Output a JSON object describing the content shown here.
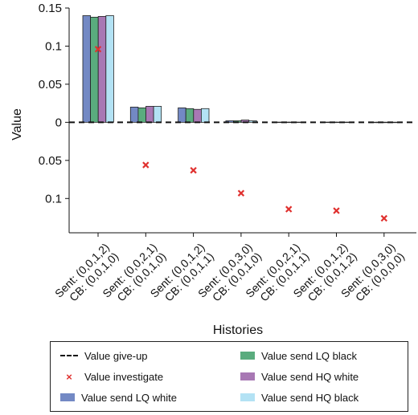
{
  "chart_data": {
    "type": "bar",
    "ylabel": "Value",
    "xlabel": "Histories",
    "ylim": [
      -0.145,
      0.15
    ],
    "y_ticks": [
      {
        "value": 0.15,
        "label": "0.15"
      },
      {
        "value": 0.1,
        "label": "0.1"
      },
      {
        "value": 0.05,
        "label": "0.05"
      },
      {
        "value": 0,
        "label": "0"
      },
      {
        "value": -0.05,
        "label": "0.05"
      },
      {
        "value": -0.1,
        "label": "0.1"
      }
    ],
    "categories": [
      "Sent: (0,0,1,2)\nCB: (0,0,1,0)",
      "Sent: (0,0,2,1)\nCB: (0,0,1,0)",
      "Sent: (0,0,1,2)\nCB: (0,0,1,1)",
      "Sent: (0,0,3,0)\nCB: (0,0,1,0)",
      "Sent: (0,0,2,1)\nCB: (0,0,1,1)",
      "Sent: (0,0,1,2)\nCB: (0,0,1,2)",
      "Sent: (0,0,3,0)\nCB: (0,0,0,0)"
    ],
    "series": [
      {
        "name": "Value give-up",
        "kind": "line",
        "color": "#111111",
        "values": [
          0,
          0,
          0,
          0,
          0,
          0,
          0
        ]
      },
      {
        "name": "Value investigate",
        "kind": "marker",
        "color": "#e0312f",
        "values": [
          0.096,
          -0.056,
          -0.063,
          -0.093,
          -0.114,
          -0.116,
          -0.126
        ]
      },
      {
        "name": "Value send LQ white",
        "kind": "bar",
        "color": "#7389c4",
        "values": [
          0.14,
          0.02,
          0.019,
          0.002,
          0.0003,
          0.0003,
          0.0002
        ]
      },
      {
        "name": "Value send LQ black",
        "kind": "bar",
        "color": "#5aac7e",
        "values": [
          0.138,
          0.019,
          0.018,
          0.002,
          0.0003,
          0.0003,
          0.0002
        ]
      },
      {
        "name": "Value send HQ white",
        "kind": "bar",
        "color": "#a878b4",
        "values": [
          0.139,
          0.021,
          0.017,
          0.003,
          0.0003,
          0.0003,
          0.0002
        ]
      },
      {
        "name": "Value send HQ black",
        "kind": "bar",
        "color": "#b3e2f4",
        "values": [
          0.14,
          0.021,
          0.018,
          0.002,
          0.0003,
          0.0003,
          0.0002
        ]
      }
    ],
    "grid": false,
    "legend_position": "bottom"
  }
}
